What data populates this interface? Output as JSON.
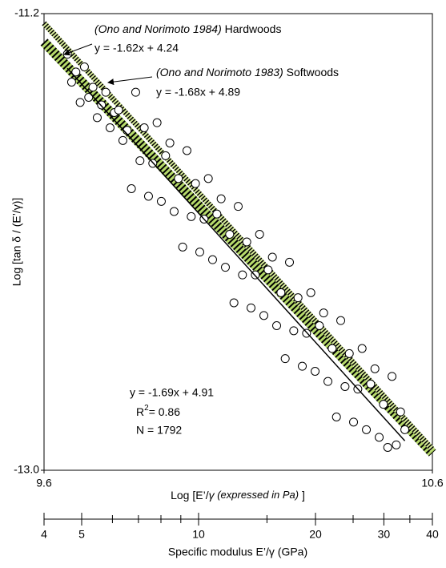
{
  "chart_data": {
    "type": "scatter",
    "xlim": [
      9.6,
      10.6
    ],
    "xticks": [
      9.6,
      10.6
    ],
    "ylim": [
      -13.0,
      -11.2
    ],
    "yticks": [
      -11.2,
      {
        "value": -13.0,
        "label": "-13.0"
      }
    ],
    "xlabel_parts": [
      "Log [E’/",
      "γ",
      " (expressed in Pa)",
      " ]"
    ],
    "ylabel": "Log [tan δ / (E’/γ)]",
    "point_color": "#000000",
    "x": [
      9.66,
      9.671,
      9.682,
      9.693,
      9.704,
      9.715,
      9.726,
      9.737,
      9.748,
      9.759,
      9.77,
      9.781,
      9.792,
      9.803,
      9.814,
      9.825,
      9.836,
      9.847,
      9.858,
      9.869,
      9.88,
      9.891,
      9.902,
      9.913,
      9.924,
      9.935,
      9.946,
      9.957,
      9.968,
      9.979,
      9.99,
      10.001,
      10.012,
      10.023,
      10.034,
      10.045,
      10.056,
      10.067,
      10.078,
      10.089,
      10.1,
      10.111,
      10.122,
      10.133,
      10.144,
      10.155,
      10.166,
      10.177,
      10.188,
      10.199,
      10.21,
      10.221,
      10.232,
      10.243,
      10.254,
      10.265,
      10.276,
      10.287,
      10.298,
      10.309,
      10.32,
      10.331,
      10.342,
      10.353,
      10.364,
      10.375,
      10.386,
      10.397,
      10.408,
      10.419,
      10.43,
      10.441,
      10.452,
      10.463,
      10.474,
      10.485,
      10.496,
      10.507,
      10.518,
      10.529
    ],
    "values": [
      -11.36,
      -11.47,
      -11.43,
      -11.55,
      -11.41,
      -11.53,
      -11.49,
      -11.61,
      -11.56,
      -11.51,
      -11.65,
      -11.59,
      -11.58,
      -11.7,
      -11.66,
      -11.89,
      -11.51,
      -11.78,
      -11.65,
      -11.92,
      -11.79,
      -11.63,
      -11.94,
      -11.76,
      -11.71,
      -11.98,
      -11.85,
      -12.12,
      -11.74,
      -12.0,
      -11.87,
      -12.14,
      -12.01,
      -11.85,
      -12.17,
      -11.99,
      -11.93,
      -12.2,
      -12.07,
      -12.34,
      -11.96,
      -12.23,
      -12.1,
      -12.36,
      -12.23,
      -12.07,
      -12.39,
      -12.21,
      -12.16,
      -12.43,
      -12.3,
      -12.56,
      -12.18,
      -12.45,
      -12.32,
      -12.59,
      -12.46,
      -12.3,
      -12.61,
      -12.43,
      -12.38,
      -12.65,
      -12.52,
      -12.79,
      -12.41,
      -12.67,
      -12.54,
      -12.81,
      -12.68,
      -12.52,
      -12.84,
      -12.66,
      -12.6,
      -12.87,
      -12.74,
      -12.91,
      -12.63,
      -12.9,
      -12.77,
      -12.84
    ],
    "fit": {
      "equation": "y = -1.69x + 4.91",
      "slope": -1.69,
      "intercept": 4.91,
      "color": "#000000",
      "r2_label": "R",
      "r2_sup": "2",
      "r2_value": "= 0.86",
      "n_label": "N = 1792"
    },
    "references": [
      {
        "citation": "(Ono and Norimoto 1984)",
        "label": "Hardwoods",
        "equation": "y = -1.62x + 4.24",
        "slope": -1.62,
        "intercept": 4.24,
        "color": "#b5d96a"
      },
      {
        "citation": "(Ono and Norimoto 1983)",
        "label": "Softwoods",
        "equation": "y = -1.68x + 4.89",
        "slope": -1.68,
        "intercept": 4.89,
        "color": "#d8ec9a"
      }
    ],
    "secondary_x": {
      "label": "Specific modulus E’/γ (GPa)",
      "log": true,
      "xlim": [
        4,
        40
      ],
      "xticks": [
        4,
        5,
        10,
        20,
        30,
        40
      ],
      "minor_ticks": [
        6,
        7,
        8,
        9,
        15,
        25,
        35
      ]
    }
  }
}
